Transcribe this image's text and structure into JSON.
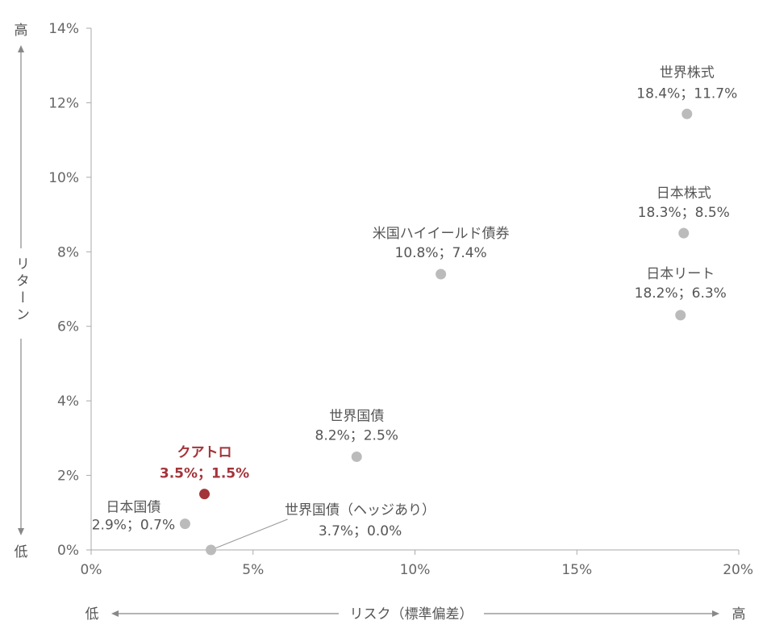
{
  "chart_data": {
    "type": "scatter",
    "xlim": [
      0,
      20
    ],
    "ylim": [
      0,
      14
    ],
    "x_ticks": [
      "0%",
      "5%",
      "10%",
      "15%",
      "20%"
    ],
    "y_ticks": [
      "0%",
      "2%",
      "4%",
      "6%",
      "8%",
      "10%",
      "12%",
      "14%"
    ],
    "x_axis": {
      "label": "リスク（標準偏差）",
      "low": "低",
      "high": "高"
    },
    "y_axis": {
      "label": "リターン",
      "low": "低",
      "high": "高"
    },
    "grid": false,
    "colors": {
      "point": "#bbbbbb",
      "highlight": "#a3343a"
    },
    "points": [
      {
        "name": "世界株式",
        "x": 18.4,
        "y": 11.7,
        "value_label": "18.4%；11.7%",
        "highlight": false
      },
      {
        "name": "日本株式",
        "x": 18.3,
        "y": 8.5,
        "value_label": "18.3%；8.5%",
        "highlight": false
      },
      {
        "name": "日本リート",
        "x": 18.2,
        "y": 6.3,
        "value_label": "18.2%；6.3%",
        "highlight": false
      },
      {
        "name": "米国ハイイールド債券",
        "x": 10.8,
        "y": 7.4,
        "value_label": "10.8%；7.4%",
        "highlight": false
      },
      {
        "name": "世界国債",
        "x": 8.2,
        "y": 2.5,
        "value_label": "8.2%；2.5%",
        "highlight": false
      },
      {
        "name": "クアトロ",
        "x": 3.5,
        "y": 1.5,
        "value_label": "3.5%；1.5%",
        "highlight": true
      },
      {
        "name": "日本国債",
        "x": 2.9,
        "y": 0.7,
        "value_label": "2.9%；0.7%",
        "highlight": false
      },
      {
        "name": "世界国債（ヘッジあり）",
        "x": 3.7,
        "y": 0.0,
        "value_label": "3.7%；0.0%",
        "highlight": false
      }
    ]
  }
}
